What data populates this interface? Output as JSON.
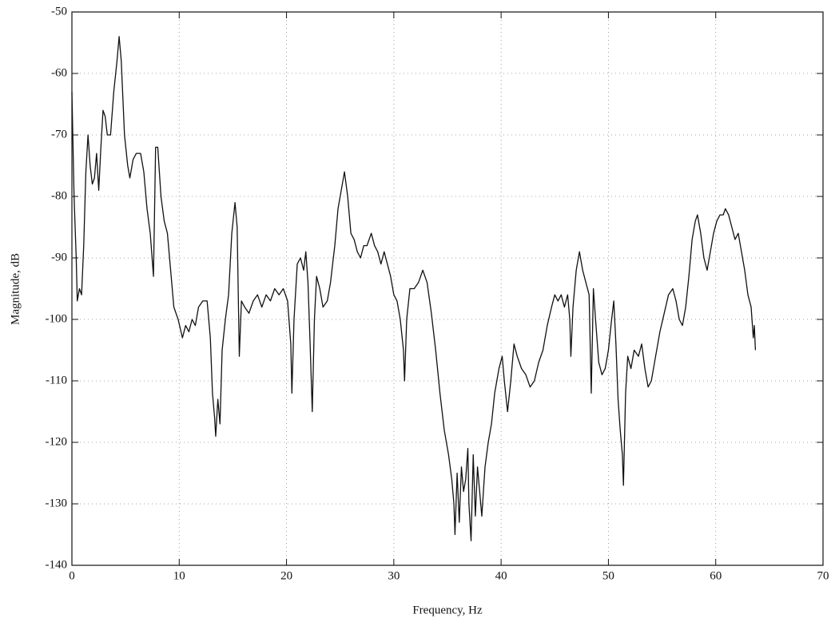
{
  "chart_data": {
    "type": "line",
    "xlabel": "Frequency, Hz",
    "ylabel": "Magnitude, dB",
    "x": [
      0,
      0.2,
      0.4,
      0.5,
      0.7,
      0.9,
      1.1,
      1.3,
      1.5,
      1.7,
      1.9,
      2.1,
      2.3,
      2.5,
      2.7,
      2.9,
      3.1,
      3.3,
      3.6,
      3.9,
      4.2,
      4.4,
      4.6,
      4.9,
      5.2,
      5.4,
      5.7,
      6.0,
      6.4,
      6.7,
      7.0,
      7.3,
      7.6,
      7.8,
      8.0,
      8.3,
      8.6,
      8.9,
      9.2,
      9.5,
      9.9,
      10.3,
      10.6,
      10.9,
      11.2,
      11.5,
      11.8,
      12.2,
      12.6,
      12.9,
      13.1,
      13.3,
      13.4,
      13.6,
      13.8,
      14.0,
      14.3,
      14.6,
      14.9,
      15.2,
      15.4,
      15.6,
      15.8,
      16.1,
      16.5,
      16.9,
      17.3,
      17.7,
      18.1,
      18.5,
      18.9,
      19.3,
      19.7,
      20.1,
      20.4,
      20.5,
      20.7,
      21.0,
      21.3,
      21.6,
      21.8,
      22.0,
      22.2,
      22.4,
      22.6,
      22.8,
      23.1,
      23.4,
      23.8,
      24.1,
      24.5,
      24.8,
      25.1,
      25.4,
      25.7,
      26.0,
      26.3,
      26.6,
      26.9,
      27.2,
      27.5,
      27.9,
      28.2,
      28.5,
      28.8,
      29.1,
      29.4,
      29.7,
      30.0,
      30.3,
      30.6,
      30.9,
      31.0,
      31.2,
      31.5,
      31.9,
      32.3,
      32.7,
      33.1,
      33.5,
      33.9,
      34.3,
      34.7,
      35.1,
      35.4,
      35.6,
      35.7,
      35.9,
      36.1,
      36.3,
      36.5,
      36.7,
      36.9,
      37.0,
      37.2,
      37.4,
      37.6,
      37.8,
      38.0,
      38.2,
      38.5,
      38.8,
      39.1,
      39.4,
      39.8,
      40.1,
      40.3,
      40.6,
      40.9,
      41.2,
      41.5,
      41.9,
      42.3,
      42.7,
      43.1,
      43.5,
      43.9,
      44.3,
      44.7,
      45.0,
      45.3,
      45.6,
      45.9,
      46.2,
      46.4,
      46.5,
      46.7,
      47.0,
      47.3,
      47.6,
      47.9,
      48.2,
      48.4,
      48.6,
      48.8,
      49.1,
      49.4,
      49.7,
      50.0,
      50.3,
      50.5,
      50.7,
      50.9,
      51.1,
      51.3,
      51.4,
      51.6,
      51.8,
      52.1,
      52.4,
      52.8,
      53.1,
      53.4,
      53.7,
      54.0,
      54.4,
      54.8,
      55.2,
      55.6,
      56.0,
      56.3,
      56.6,
      56.9,
      57.2,
      57.5,
      57.8,
      58.1,
      58.3,
      58.6,
      58.9,
      59.2,
      59.5,
      59.8,
      60.1,
      60.4,
      60.7,
      60.9,
      61.2,
      61.5,
      61.8,
      62.1,
      62.4,
      62.7,
      63.0,
      63.3,
      63.5,
      63.6,
      63.7
    ],
    "values": [
      -63,
      -80,
      -90,
      -97,
      -95,
      -96,
      -88,
      -76,
      -70,
      -75,
      -78,
      -77,
      -73,
      -79,
      -72,
      -66,
      -67,
      -70,
      -70,
      -63,
      -58,
      -54,
      -58,
      -70,
      -75,
      -77,
      -74,
      -73,
      -73,
      -76,
      -82,
      -86,
      -93,
      -72,
      -72,
      -80,
      -84,
      -86,
      -92,
      -98,
      -100,
      -103,
      -101,
      -102,
      -100,
      -101,
      -98,
      -97,
      -97,
      -103,
      -112,
      -116,
      -119,
      -113,
      -117,
      -105,
      -100,
      -96,
      -86,
      -81,
      -85,
      -106,
      -97,
      -98,
      -99,
      -97,
      -96,
      -98,
      -96,
      -97,
      -95,
      -96,
      -95,
      -97,
      -104,
      -112,
      -100,
      -91,
      -90,
      -92,
      -89,
      -94,
      -104,
      -115,
      -100,
      -93,
      -95,
      -98,
      -97,
      -94,
      -88,
      -82,
      -79,
      -76,
      -80,
      -86,
      -87,
      -89,
      -90,
      -88,
      -88,
      -86,
      -88,
      -89,
      -91,
      -89,
      -91,
      -93,
      -96,
      -97,
      -100,
      -105,
      -110,
      -100,
      -95,
      -95,
      -94,
      -92,
      -94,
      -99,
      -105,
      -112,
      -118,
      -122,
      -126,
      -130,
      -135,
      -125,
      -133,
      -124,
      -128,
      -126,
      -121,
      -130,
      -136,
      -122,
      -132,
      -124,
      -128,
      -132,
      -124,
      -120,
      -117,
      -112,
      -108,
      -106,
      -110,
      -115,
      -110,
      -104,
      -106,
      -108,
      -109,
      -111,
      -110,
      -107,
      -105,
      -101,
      -98,
      -96,
      -97,
      -96,
      -98,
      -96,
      -100,
      -106,
      -98,
      -92,
      -89,
      -92,
      -94,
      -96,
      -112,
      -95,
      -100,
      -107,
      -109,
      -108,
      -105,
      -100,
      -97,
      -104,
      -113,
      -118,
      -122,
      -127,
      -112,
      -106,
      -108,
      -105,
      -106,
      -104,
      -108,
      -111,
      -110,
      -106,
      -102,
      -99,
      -96,
      -95,
      -97,
      -100,
      -101,
      -98,
      -93,
      -87,
      -84,
      -83,
      -86,
      -90,
      -92,
      -89,
      -86,
      -84,
      -83,
      -83,
      -82,
      -83,
      -85,
      -87,
      -86,
      -89,
      -92,
      -96,
      -98,
      -103,
      -101,
      -105
    ],
    "color": "#111111",
    "xlim": [
      0,
      70
    ],
    "xticks": [
      0,
      10,
      20,
      30,
      40,
      50,
      60,
      70
    ],
    "ylim": [
      -140,
      -50
    ],
    "yticks": [
      -140,
      -130,
      -120,
      -110,
      -100,
      -90,
      -80,
      -70,
      -60,
      -50
    ],
    "grid": true
  }
}
